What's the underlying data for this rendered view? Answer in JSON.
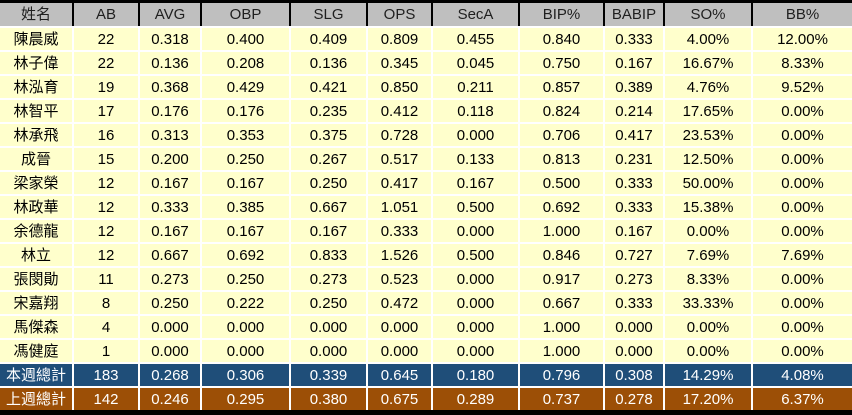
{
  "colors": {
    "header_bg": "#BFBFBF",
    "header_text": "#1F1F1F",
    "cell_bg": "#FFFFCC",
    "cell_text": "#000000",
    "grid_gap": "#FFFFFF",
    "header_gap": "#000000",
    "this_week_row_bg": "#1F4E79",
    "last_week_row_bg": "#9C4F06",
    "totals_text": "#FFFFFF"
  },
  "table": {
    "columns": [
      "姓名",
      "AB",
      "AVG",
      "OBP",
      "SLG",
      "OPS",
      "SecA",
      "BIP%",
      "BABIP",
      "SO%",
      "BB%"
    ],
    "rows": [
      [
        "陳晨威",
        "22",
        "0.318",
        "0.400",
        "0.409",
        "0.809",
        "0.455",
        "0.840",
        "0.333",
        "4.00%",
        "12.00%"
      ],
      [
        "林子偉",
        "22",
        "0.136",
        "0.208",
        "0.136",
        "0.345",
        "0.045",
        "0.750",
        "0.167",
        "16.67%",
        "8.33%"
      ],
      [
        "林泓育",
        "19",
        "0.368",
        "0.429",
        "0.421",
        "0.850",
        "0.211",
        "0.857",
        "0.389",
        "4.76%",
        "9.52%"
      ],
      [
        "林智平",
        "17",
        "0.176",
        "0.176",
        "0.235",
        "0.412",
        "0.118",
        "0.824",
        "0.214",
        "17.65%",
        "0.00%"
      ],
      [
        "林承飛",
        "16",
        "0.313",
        "0.353",
        "0.375",
        "0.728",
        "0.000",
        "0.706",
        "0.417",
        "23.53%",
        "0.00%"
      ],
      [
        "成晉",
        "15",
        "0.200",
        "0.250",
        "0.267",
        "0.517",
        "0.133",
        "0.813",
        "0.231",
        "12.50%",
        "0.00%"
      ],
      [
        "梁家榮",
        "12",
        "0.167",
        "0.167",
        "0.250",
        "0.417",
        "0.167",
        "0.500",
        "0.333",
        "50.00%",
        "0.00%"
      ],
      [
        "林政華",
        "12",
        "0.333",
        "0.385",
        "0.667",
        "1.051",
        "0.500",
        "0.692",
        "0.333",
        "15.38%",
        "0.00%"
      ],
      [
        "余德龍",
        "12",
        "0.167",
        "0.167",
        "0.167",
        "0.333",
        "0.000",
        "1.000",
        "0.167",
        "0.00%",
        "0.00%"
      ],
      [
        "林立",
        "12",
        "0.667",
        "0.692",
        "0.833",
        "1.526",
        "0.500",
        "0.846",
        "0.727",
        "7.69%",
        "7.69%"
      ],
      [
        "張閔勛",
        "11",
        "0.273",
        "0.250",
        "0.273",
        "0.523",
        "0.000",
        "0.917",
        "0.273",
        "8.33%",
        "0.00%"
      ],
      [
        "宋嘉翔",
        "8",
        "0.250",
        "0.222",
        "0.250",
        "0.472",
        "0.000",
        "0.667",
        "0.333",
        "33.33%",
        "0.00%"
      ],
      [
        "馬傑森",
        "4",
        "0.000",
        "0.000",
        "0.000",
        "0.000",
        "0.000",
        "1.000",
        "0.000",
        "0.00%",
        "0.00%"
      ],
      [
        "馮健庭",
        "1",
        "0.000",
        "0.000",
        "0.000",
        "0.000",
        "0.000",
        "1.000",
        "0.000",
        "0.00%",
        "0.00%"
      ]
    ],
    "total_rows": [
      {
        "id": "this-week",
        "cells": [
          "本週總計",
          "183",
          "0.268",
          "0.306",
          "0.339",
          "0.645",
          "0.180",
          "0.796",
          "0.308",
          "14.29%",
          "4.08%"
        ]
      },
      {
        "id": "last-week",
        "cells": [
          "上週總計",
          "142",
          "0.246",
          "0.295",
          "0.380",
          "0.675",
          "0.289",
          "0.737",
          "0.278",
          "17.20%",
          "6.37%"
        ]
      }
    ]
  }
}
